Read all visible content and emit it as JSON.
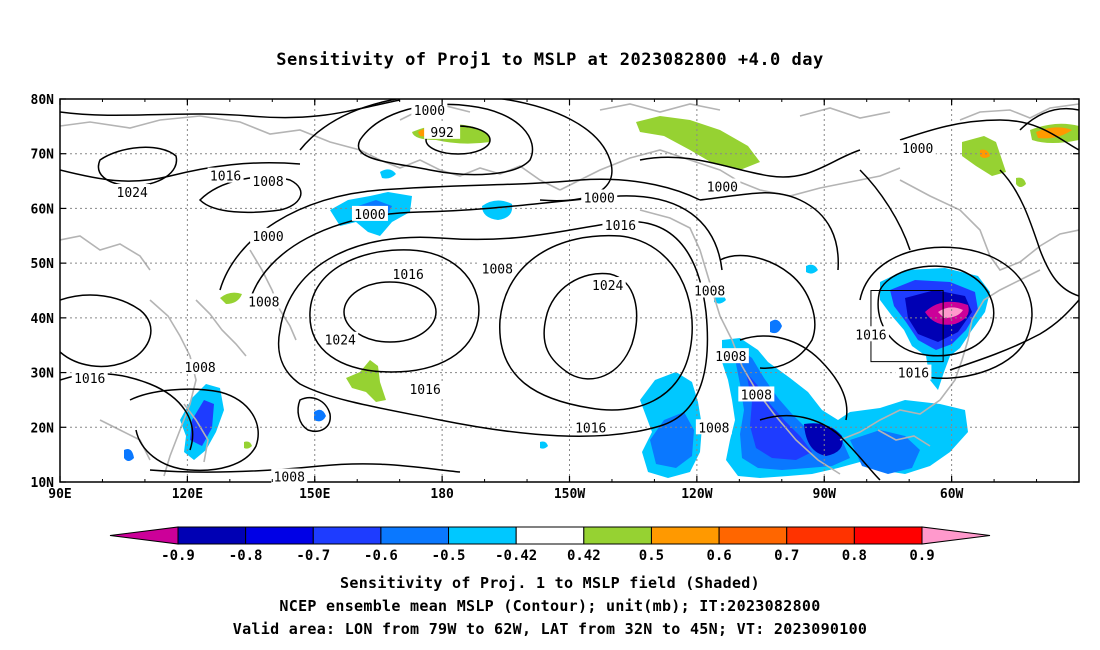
{
  "title": "Sensitivity of Proj1 to MSLP at 2023082800 +4.0 day",
  "lat_labels": [
    "80N",
    "70N",
    "60N",
    "50N",
    "40N",
    "30N",
    "20N",
    "10N"
  ],
  "lon_labels": [
    "90E",
    "120E",
    "150E",
    "180",
    "150W",
    "120W",
    "90W",
    "60W"
  ],
  "colorbar": {
    "labels": [
      "-0.9",
      "-0.8",
      "-0.7",
      "-0.6",
      "-0.5",
      "-0.42",
      "0.42",
      "0.5",
      "0.6",
      "0.7",
      "0.8",
      "0.9"
    ],
    "colors": [
      "#cc0099",
      "#0000b4",
      "#0000e6",
      "#1e3cff",
      "#0a78ff",
      "#00c8ff",
      "#ffffff",
      "#96d232",
      "#ff9900",
      "#ff6600",
      "#ff3300",
      "#ff0000",
      "#ff99cc"
    ]
  },
  "contour_labels": [
    {
      "text": "1000",
      "lon": 177,
      "lat": 78
    },
    {
      "text": "992",
      "lon": 180,
      "lat": 74
    },
    {
      "text": "1024",
      "lon": 107,
      "lat": 63
    },
    {
      "text": "1016",
      "lon": 129,
      "lat": 66
    },
    {
      "text": "1008",
      "lon": 139,
      "lat": 65
    },
    {
      "text": "1000",
      "lon": 163,
      "lat": 59
    },
    {
      "text": "1000",
      "lon": 139,
      "lat": 55
    },
    {
      "text": "1008",
      "lon": 138,
      "lat": 43
    },
    {
      "text": "1016",
      "lon": 172,
      "lat": 48
    },
    {
      "text": "1008",
      "lon": 193,
      "lat": 49
    },
    {
      "text": "1000",
      "lon": 217,
      "lat": 62
    },
    {
      "text": "1016",
      "lon": 222,
      "lat": 57
    },
    {
      "text": "1000",
      "lon": 246,
      "lat": 64
    },
    {
      "text": "1024",
      "lon": 219,
      "lat": 46
    },
    {
      "text": "1008",
      "lon": 243,
      "lat": 45
    },
    {
      "text": "1024",
      "lon": 156,
      "lat": 36
    },
    {
      "text": "1016",
      "lon": 97,
      "lat": 29
    },
    {
      "text": "1008",
      "lon": 123,
      "lat": 31
    },
    {
      "text": "1016",
      "lon": 176,
      "lat": 27
    },
    {
      "text": "1008",
      "lon": 248,
      "lat": 33
    },
    {
      "text": "1008",
      "lon": 254,
      "lat": 26
    },
    {
      "text": "1008",
      "lon": 244,
      "lat": 20
    },
    {
      "text": "1016",
      "lon": 215,
      "lat": 20
    },
    {
      "text": "1008",
      "lon": 144,
      "lat": 11
    },
    {
      "text": "1016",
      "lon": 281,
      "lat": 37
    },
    {
      "text": "1016",
      "lon": 291,
      "lat": 30
    },
    {
      "text": "1000",
      "lon": 292,
      "lat": 71
    }
  ],
  "captions": {
    "line1": "Sensitivity of Proj. 1 to MSLP field (Shaded)",
    "line2": "NCEP ensemble mean MSLP (Contour); unit(mb); IT:2023082800",
    "line3": "Valid area: LON from 79W to 62W, LAT from 32N to 45N; VT: 2023090100"
  },
  "valid_area": {
    "lon_min": 281,
    "lon_max": 298,
    "lat_min": 32,
    "lat_max": 45
  },
  "colors": {
    "contour": "#000000",
    "coastline": "#b4b4b4",
    "grid": "#888888"
  }
}
